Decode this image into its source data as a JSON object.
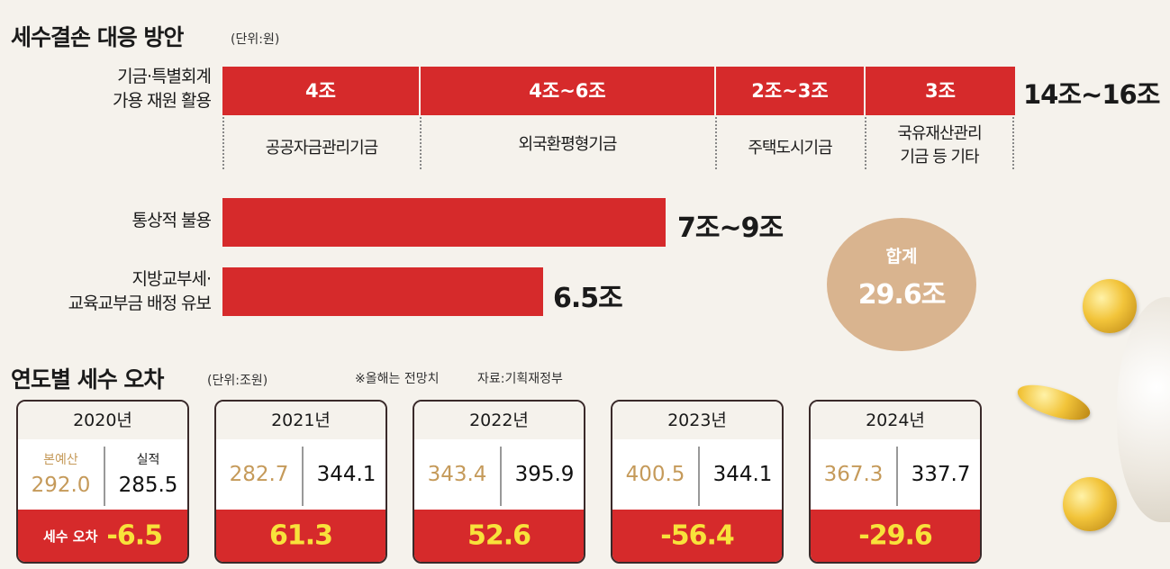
{
  "section1": {
    "title": "세수결손 대응 방안",
    "unit": "(단위:원)",
    "row1_label": [
      "기금·특별회계",
      "가용 재원 활용"
    ],
    "row1_total": "14조~16조",
    "segments": [
      {
        "value": "4조",
        "name": [
          "공공자금관리기금"
        ]
      },
      {
        "value": "4조~6조",
        "name": [
          "외국환평형기금"
        ]
      },
      {
        "value": "2조~3조",
        "name": [
          "주택도시기금"
        ]
      },
      {
        "value": "3조",
        "name": [
          "국유재산관리",
          "기금 등 기타"
        ]
      }
    ],
    "row2_label": "통상적 불용",
    "row2_value": "7조~9조",
    "row3_label": [
      "지방교부세·",
      "교육교부금 배정 유보"
    ],
    "row3_value": "6.5조",
    "total_label": "합계",
    "total_value": "29.6조"
  },
  "section2": {
    "title": "연도별 세수 오차",
    "unit": "(단위:조원)",
    "note": "※올해는 전망치",
    "source": "자료:기획재정부",
    "budget_label": "본예산",
    "actual_label": "실적",
    "error_label": "세수 오차",
    "years": [
      {
        "year": "2020년",
        "budget": "292.0",
        "actual": "285.5",
        "error": "-6.5"
      },
      {
        "year": "2021년",
        "budget": "282.7",
        "actual": "344.1",
        "error": "61.3"
      },
      {
        "year": "2022년",
        "budget": "343.4",
        "actual": "395.9",
        "error": "52.6"
      },
      {
        "year": "2023년",
        "budget": "400.5",
        "actual": "344.1",
        "error": "-56.4"
      },
      {
        "year": "2024년",
        "budget": "367.3",
        "actual": "337.7",
        "error": "-29.6"
      }
    ]
  },
  "chart_data": [
    {
      "type": "bar",
      "title": "세수결손 대응 방안",
      "unit": "(단위:원)",
      "categories": [
        "기금·특별회계 가용 재원 활용",
        "통상적 불용",
        "지방교부세·교육교부금 배정 유보"
      ],
      "values_text": [
        "14조~16조",
        "7조~9조",
        "6.5조"
      ],
      "stacked_segments": [
        "4조",
        "4조~6조",
        "2조~3조",
        "3조"
      ],
      "total": "29.6조"
    },
    {
      "type": "table",
      "title": "연도별 세수 오차",
      "unit": "(단위:조원)",
      "categories": [
        "2020년",
        "2021년",
        "2022년",
        "2023년",
        "2024년"
      ],
      "series": [
        {
          "name": "본예산",
          "values": [
            292.0,
            282.7,
            343.4,
            400.5,
            367.3
          ]
        },
        {
          "name": "실적",
          "values": [
            285.5,
            344.1,
            395.9,
            344.1,
            337.7
          ]
        },
        {
          "name": "세수 오차",
          "values": [
            -6.5,
            61.3,
            52.6,
            -56.4,
            -29.6
          ]
        }
      ]
    }
  ],
  "colors": {
    "bar": "#d62a2b",
    "budget_text": "#c59a5a",
    "error_text": "#f8e23b",
    "total_circle": "#d9b48f"
  }
}
